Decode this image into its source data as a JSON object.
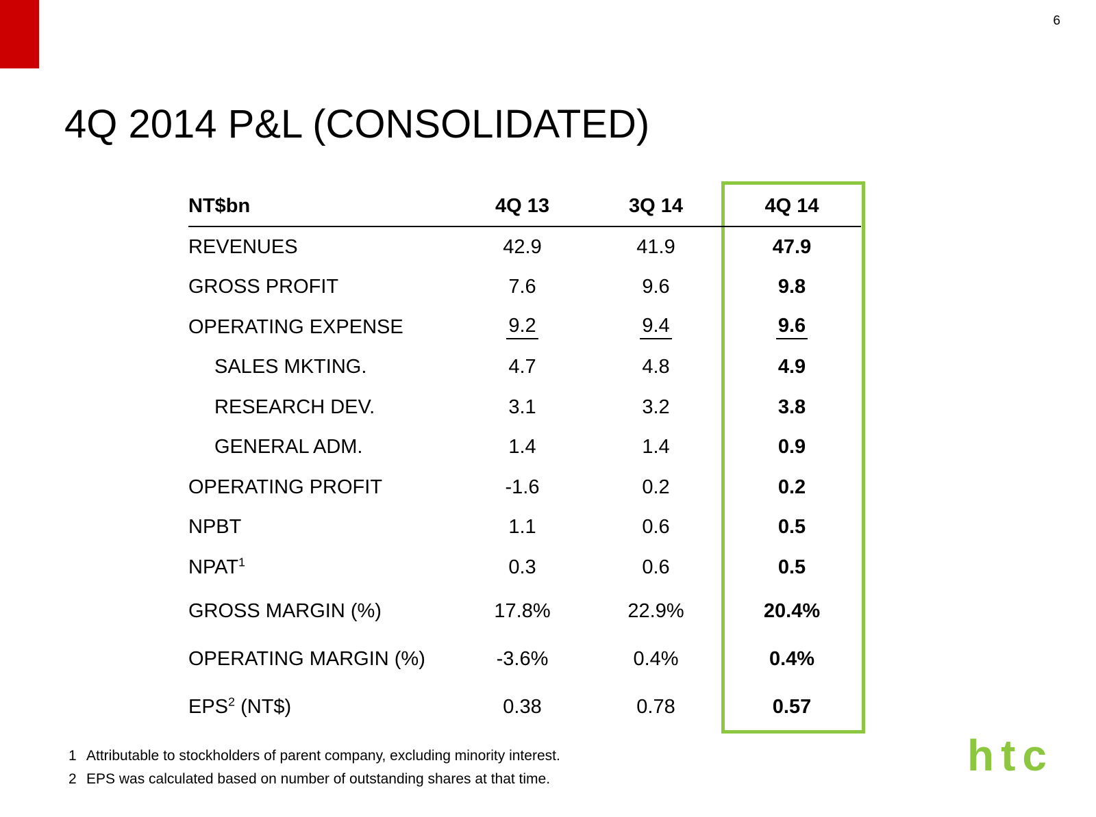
{
  "page": {
    "number": "6",
    "title": "4Q 2014 P&L (CONSOLIDATED)"
  },
  "table": {
    "unit_label": "NT$bn",
    "columns": [
      "4Q 13",
      "3Q 14",
      "4Q 14"
    ],
    "rows": [
      {
        "label": "REVENUES",
        "values": [
          "42.9",
          "41.9",
          "47.9"
        ]
      },
      {
        "label": "GROSS PROFIT",
        "values": [
          "7.6",
          "9.6",
          "9.8"
        ]
      },
      {
        "label": "OPERATING EXPENSE",
        "underline": true,
        "values": [
          "9.2",
          "9.4",
          "9.6"
        ]
      },
      {
        "label": "SALES MKTING.",
        "indent": true,
        "values": [
          "4.7",
          "4.8",
          "4.9"
        ]
      },
      {
        "label": "RESEARCH DEV.",
        "indent": true,
        "values": [
          "3.1",
          "3.2",
          "3.8"
        ]
      },
      {
        "label": "GENERAL ADM.",
        "indent": true,
        "values": [
          "1.4",
          "1.4",
          "0.9"
        ]
      },
      {
        "label": "OPERATING PROFIT",
        "values": [
          "-1.6",
          "0.2",
          "0.2"
        ]
      },
      {
        "label": "NPBT",
        "values": [
          "1.1",
          "0.6",
          "0.5"
        ]
      },
      {
        "label": "NPAT",
        "sup": "1",
        "values": [
          "0.3",
          "0.6",
          "0.5"
        ]
      },
      {
        "label": "GROSS MARGIN (%)",
        "values": [
          "17.8%",
          "22.9%",
          "20.4%"
        ]
      },
      {
        "label": "OPERATING MARGIN (%)",
        "values": [
          "-3.6%",
          "0.4%",
          "0.4%"
        ]
      },
      {
        "label": "EPS",
        "sup": "2",
        "suffix": " (NT$)",
        "values": [
          "0.38",
          "0.78",
          "0.57"
        ]
      }
    ]
  },
  "footnotes": [
    {
      "num": "1",
      "text": "Attributable to stockholders of parent company, excluding minority interest."
    },
    {
      "num": "2",
      "text": "EPS was calculated based on number of outstanding shares at that time."
    }
  ],
  "logo": {
    "text": "htc"
  },
  "colors": {
    "accent_red": "#CC0000",
    "highlight_green": "#8DC63F"
  }
}
